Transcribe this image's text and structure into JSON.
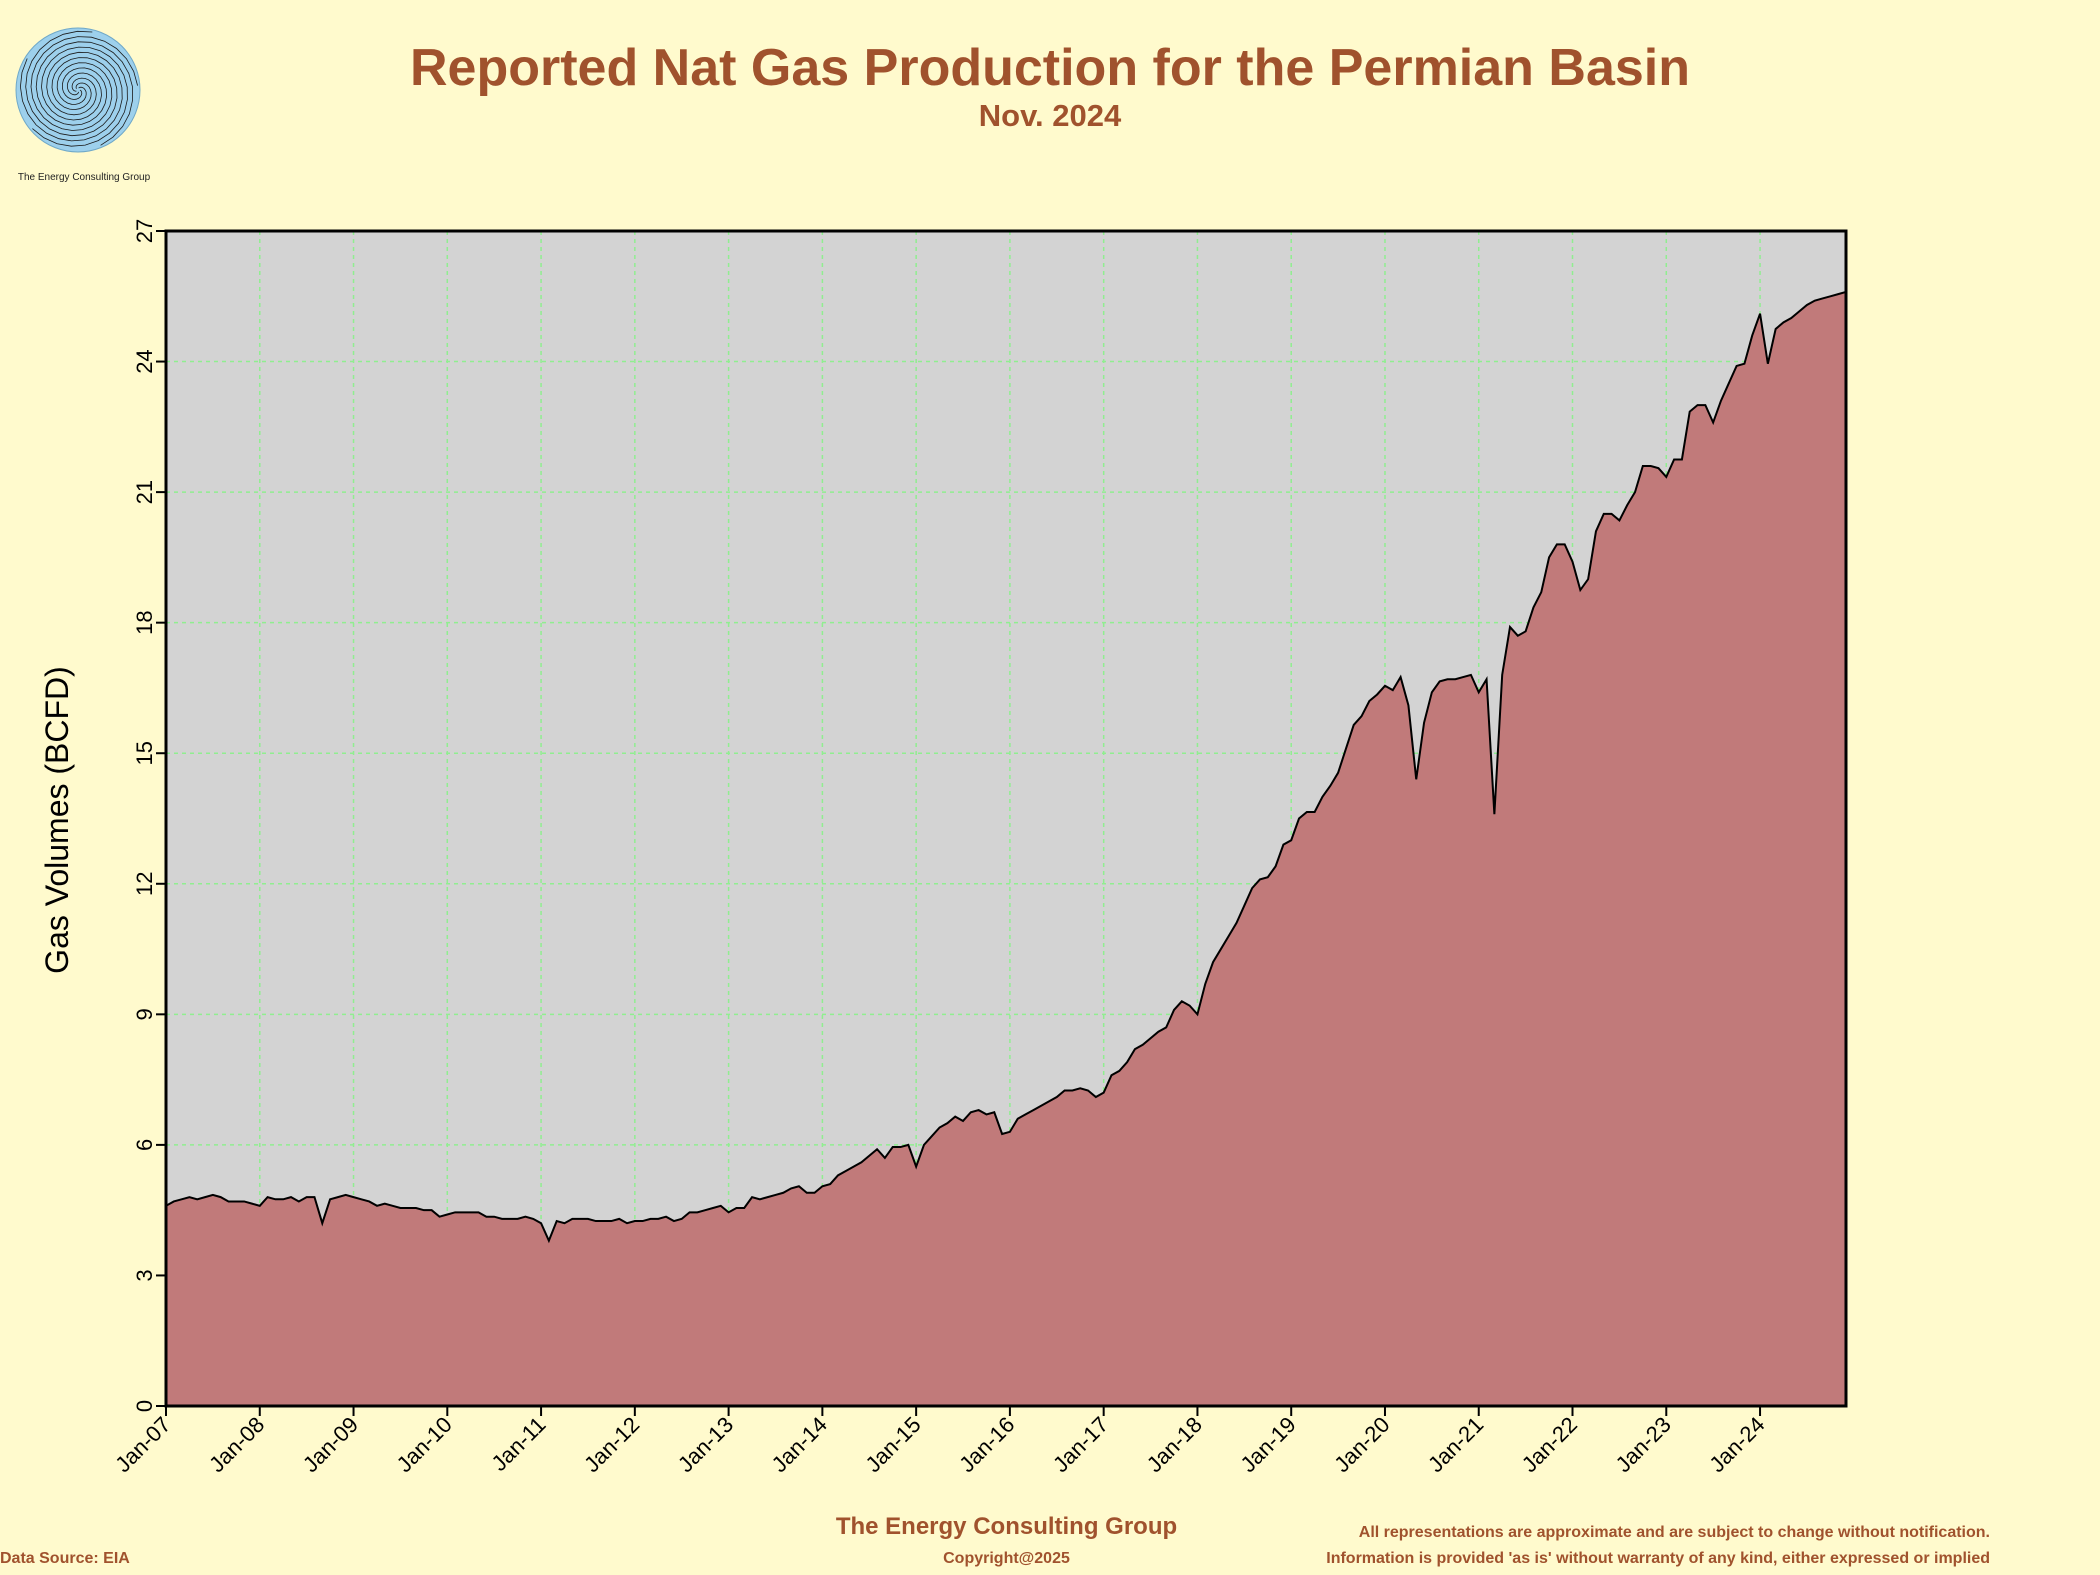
{
  "logo": {
    "caption": "The Energy Consulting Group"
  },
  "header": {
    "title": "Reported Nat Gas Production for the Permian Basin",
    "subtitle": "Nov. 2024"
  },
  "footer": {
    "company": "The Energy Consulting Group",
    "copyright": "Copyright@2025",
    "source": "Data Source: EIA",
    "disclaimer_line1": "All representations are approximate and are subject to change without notification.",
    "disclaimer_line2": "Information is provided 'as is' without warranty of any kind, either expressed or implied"
  },
  "colors": {
    "background": "#fffacd",
    "plot_background": "#d3d3d3",
    "area_fill": "#c17a7a",
    "gridline": "#90ee90",
    "title": "#a0522d"
  },
  "chart_data": {
    "type": "area",
    "title": "Reported Nat Gas Production for the Permian Basin",
    "subtitle": "Nov. 2024",
    "xlabel": "",
    "ylabel": "Gas Volumes (BCFD)",
    "ylim": [
      0,
      27
    ],
    "yticks": [
      0,
      3,
      6,
      9,
      12,
      15,
      18,
      21,
      24,
      27
    ],
    "xlim": [
      "2007-01",
      "2024-12"
    ],
    "xtick_labels": [
      "Jan-07",
      "Jan-08",
      "Jan-09",
      "Jan-10",
      "Jan-11",
      "Jan-12",
      "Jan-13",
      "Jan-14",
      "Jan-15",
      "Jan-16",
      "Jan-17",
      "Jan-18",
      "Jan-19",
      "Jan-20",
      "Jan-21",
      "Jan-22",
      "Jan-23",
      "Jan-24"
    ],
    "grid": true,
    "legend": "none",
    "series": [
      {
        "start_month": "2007-01",
        "values": [
          4.6,
          4.7,
          4.75,
          4.8,
          4.75,
          4.8,
          4.85,
          4.8,
          4.7,
          4.7,
          4.7,
          4.65,
          4.6,
          4.8,
          4.75,
          4.75,
          4.8,
          4.7,
          4.8,
          4.8,
          4.2,
          4.75,
          4.8,
          4.85,
          4.8,
          4.75,
          4.7,
          4.6,
          4.65,
          4.6,
          4.55,
          4.55,
          4.55,
          4.5,
          4.5,
          4.35,
          4.4,
          4.45,
          4.45,
          4.45,
          4.45,
          4.35,
          4.35,
          4.3,
          4.3,
          4.3,
          4.35,
          4.3,
          4.2,
          3.8,
          4.25,
          4.2,
          4.3,
          4.3,
          4.3,
          4.25,
          4.25,
          4.25,
          4.3,
          4.2,
          4.25,
          4.25,
          4.3,
          4.3,
          4.35,
          4.25,
          4.3,
          4.45,
          4.45,
          4.5,
          4.55,
          4.6,
          4.45,
          4.55,
          4.55,
          4.8,
          4.75,
          4.8,
          4.85,
          4.9,
          5.0,
          5.05,
          4.9,
          4.9,
          5.05,
          5.1,
          5.3,
          5.4,
          5.5,
          5.6,
          5.75,
          5.9,
          5.7,
          5.95,
          5.95,
          6.0,
          5.5,
          6.0,
          6.2,
          6.4,
          6.5,
          6.65,
          6.55,
          6.75,
          6.8,
          6.7,
          6.75,
          6.25,
          6.3,
          6.6,
          6.7,
          6.8,
          6.9,
          7.0,
          7.1,
          7.25,
          7.25,
          7.3,
          7.25,
          7.1,
          7.2,
          7.6,
          7.7,
          7.9,
          8.2,
          8.3,
          8.45,
          8.6,
          8.7,
          9.1,
          9.3,
          9.2,
          9.0,
          9.7,
          10.2,
          10.5,
          10.8,
          11.1,
          11.5,
          11.9,
          12.1,
          12.15,
          12.4,
          12.9,
          13.0,
          13.5,
          13.65,
          13.65,
          14.0,
          14.25,
          14.55,
          15.1,
          15.65,
          15.85,
          16.2,
          16.35,
          16.55,
          16.45,
          16.75,
          16.1,
          14.4,
          15.7,
          16.4,
          16.65,
          16.7,
          16.7,
          16.75,
          16.8,
          16.4,
          16.7,
          13.6,
          16.8,
          17.9,
          17.7,
          17.8,
          18.35,
          18.7,
          19.5,
          19.8,
          19.8,
          19.4,
          18.75,
          19.0,
          20.1,
          20.5,
          20.5,
          20.35,
          20.7,
          21.0,
          21.6,
          21.6,
          21.55,
          21.35,
          21.75,
          21.75,
          22.85,
          23.0,
          23.0,
          22.6,
          23.1,
          23.5,
          23.9,
          23.95,
          24.6,
          25.1,
          23.95,
          24.75,
          24.9,
          25.0,
          25.15,
          25.3,
          25.4,
          25.45,
          25.5,
          25.55,
          25.6
        ]
      }
    ]
  }
}
